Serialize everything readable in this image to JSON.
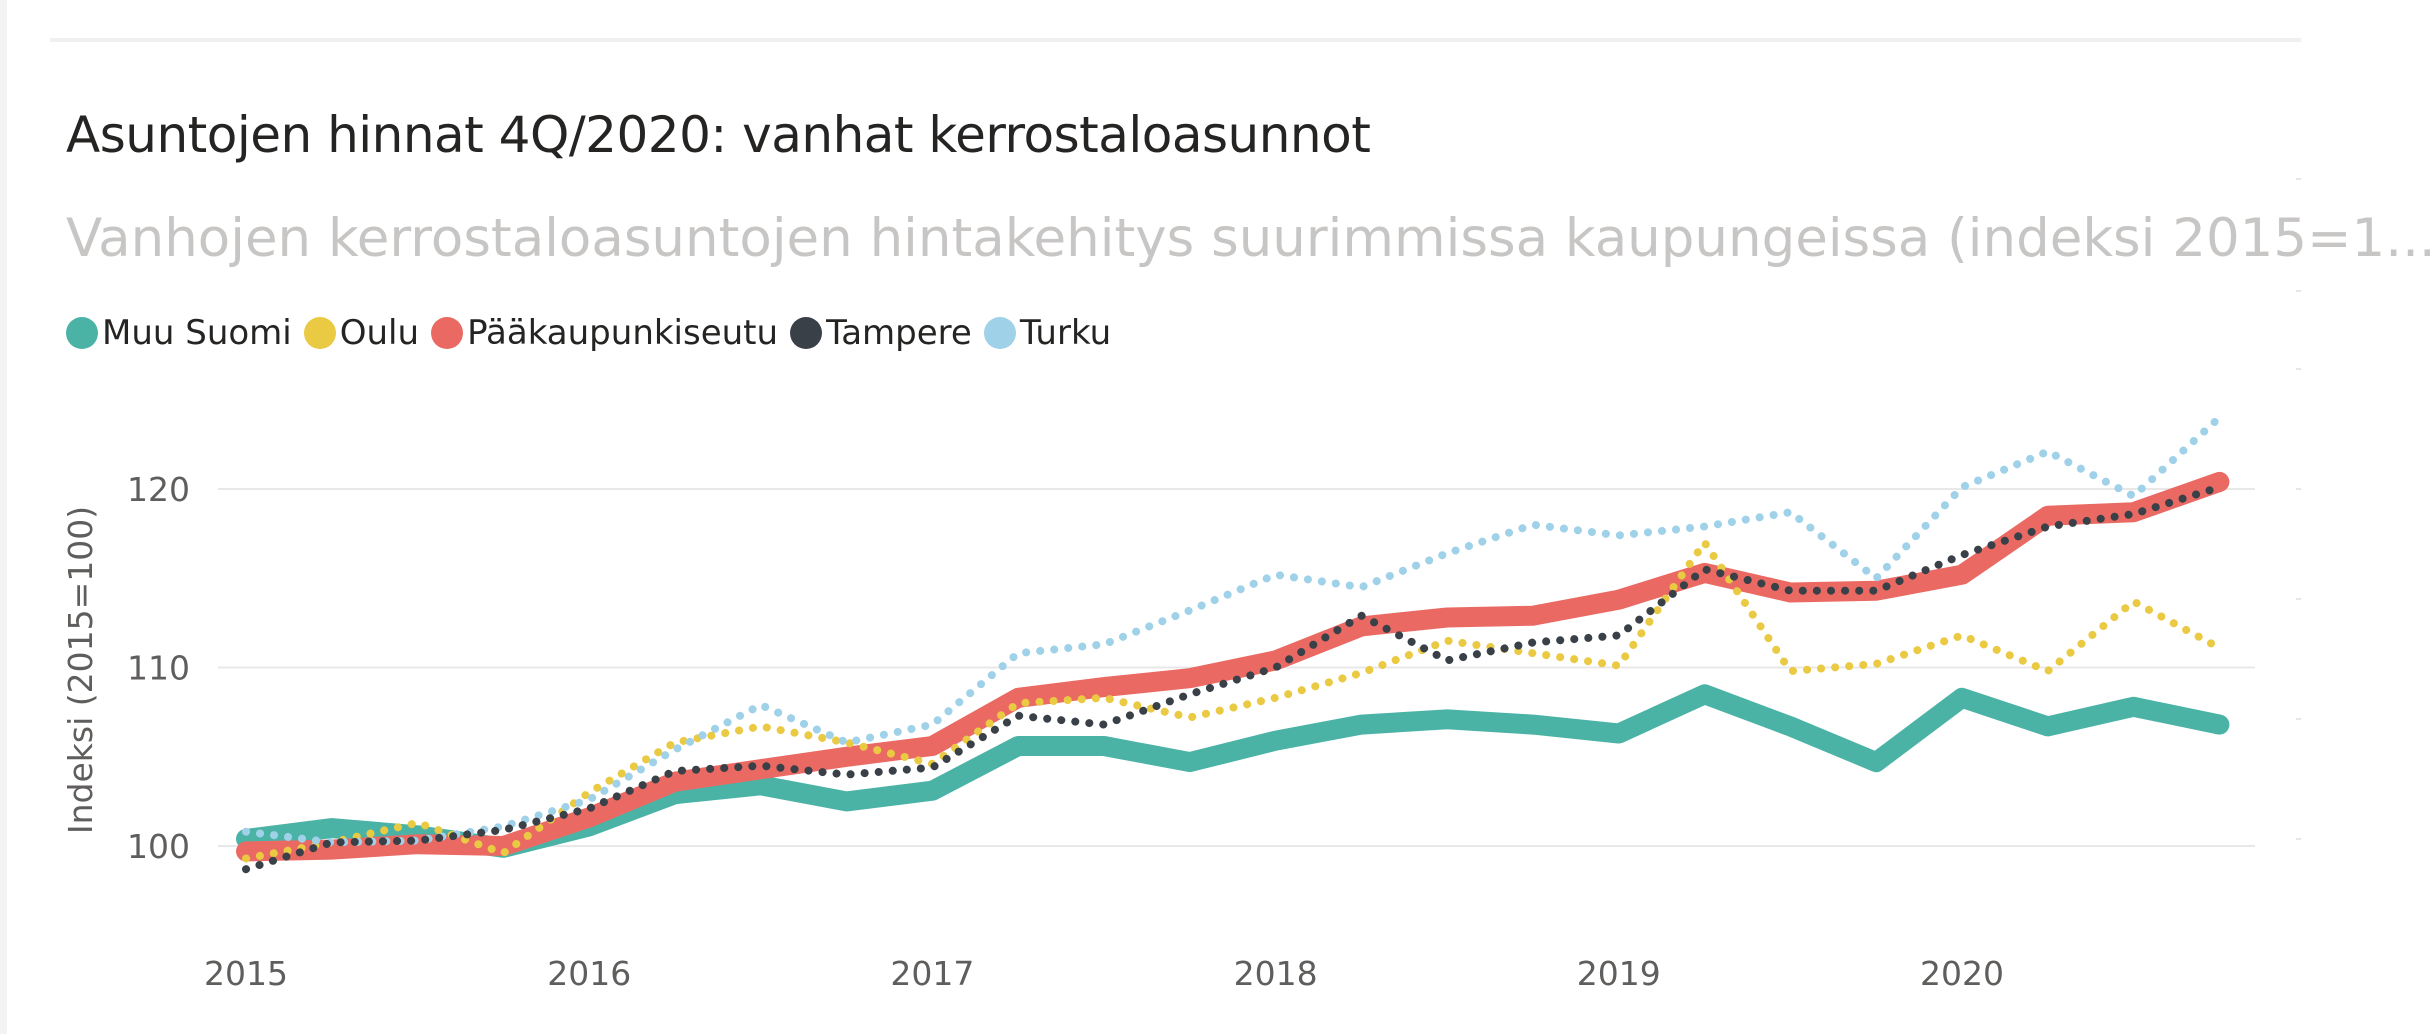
{
  "header": {
    "title": "Asuntojen hinnat 4Q/2020: vanhat kerrostaloasunnot",
    "subtitle": "Vanhojen kerrostaloasuntojen hintakehitys suurimmissa kaupungeissa (indeksi 2015=1..."
  },
  "legend": [
    {
      "name": "Muu Suomi",
      "color": "#4bb3a6"
    },
    {
      "name": "Oulu",
      "color": "#eac943"
    },
    {
      "name": "Pääkaupunkiseutu",
      "color": "#ea6a63"
    },
    {
      "name": "Tampere",
      "color": "#394048"
    },
    {
      "name": "Turku",
      "color": "#9fd1e8"
    }
  ],
  "chart_data": {
    "type": "line",
    "ylabel": "Indeksi (2015=100)",
    "xlabel": "",
    "x": [
      "2015Q1",
      "2015Q2",
      "2015Q3",
      "2015Q4",
      "2016Q1",
      "2016Q2",
      "2016Q3",
      "2016Q4",
      "2017Q1",
      "2017Q2",
      "2017Q3",
      "2017Q4",
      "2018Q1",
      "2018Q2",
      "2018Q3",
      "2018Q4",
      "2019Q1",
      "2019Q2",
      "2019Q3",
      "2019Q4",
      "2020Q1",
      "2020Q2",
      "2020Q3",
      "2020Q4"
    ],
    "x_ticks": [
      "2015",
      "2016",
      "2017",
      "2018",
      "2019",
      "2020"
    ],
    "y_ticks": [
      100,
      110,
      120
    ],
    "ylim": [
      95,
      126
    ],
    "grid": true,
    "legend_position": "top-left",
    "series": [
      {
        "name": "Muu Suomi",
        "color": "#4bb3a6",
        "style": "solid-thick",
        "values": [
          100.4,
          101.0,
          100.6,
          99.9,
          101.1,
          102.9,
          103.4,
          102.5,
          103.1,
          105.6,
          105.6,
          104.7,
          105.9,
          106.8,
          107.1,
          106.8,
          106.3,
          108.5,
          106.7,
          104.7,
          108.3,
          106.7,
          107.8,
          106.8
        ]
      },
      {
        "name": "Oulu",
        "color": "#eac943",
        "style": "dotted",
        "values": [
          99.3,
          100.2,
          101.3,
          99.6,
          103.0,
          105.8,
          106.7,
          105.8,
          104.6,
          108.0,
          108.3,
          107.2,
          108.3,
          109.7,
          111.5,
          110.8,
          110.1,
          117.0,
          109.8,
          110.2,
          111.8,
          109.8,
          113.7,
          111.1
        ]
      },
      {
        "name": "Pääkaupunkiseutu",
        "color": "#ea6a63",
        "style": "solid-thick",
        "values": [
          99.7,
          99.8,
          100.1,
          100.0,
          101.6,
          103.6,
          104.3,
          105.0,
          105.6,
          108.3,
          108.9,
          109.4,
          110.4,
          112.3,
          112.8,
          112.9,
          113.8,
          115.3,
          114.2,
          114.3,
          115.2,
          118.5,
          118.7,
          120.4
        ]
      },
      {
        "name": "Tampere",
        "color": "#394048",
        "style": "dotted",
        "values": [
          98.7,
          100.2,
          100.3,
          100.9,
          102.1,
          104.2,
          104.5,
          104.0,
          104.4,
          107.3,
          106.8,
          108.5,
          110.0,
          112.9,
          110.4,
          111.4,
          111.8,
          115.5,
          114.3,
          114.3,
          116.3,
          117.9,
          118.6,
          120.1
        ]
      },
      {
        "name": "Turku",
        "color": "#9fd1e8",
        "style": "dotted",
        "values": [
          100.8,
          100.2,
          100.3,
          101.1,
          102.6,
          105.4,
          107.9,
          105.8,
          106.8,
          110.8,
          111.3,
          113.2,
          115.2,
          114.5,
          116.4,
          118.0,
          117.4,
          117.9,
          118.7,
          115.0,
          120.1,
          122.1,
          119.6,
          124.0
        ]
      }
    ]
  }
}
